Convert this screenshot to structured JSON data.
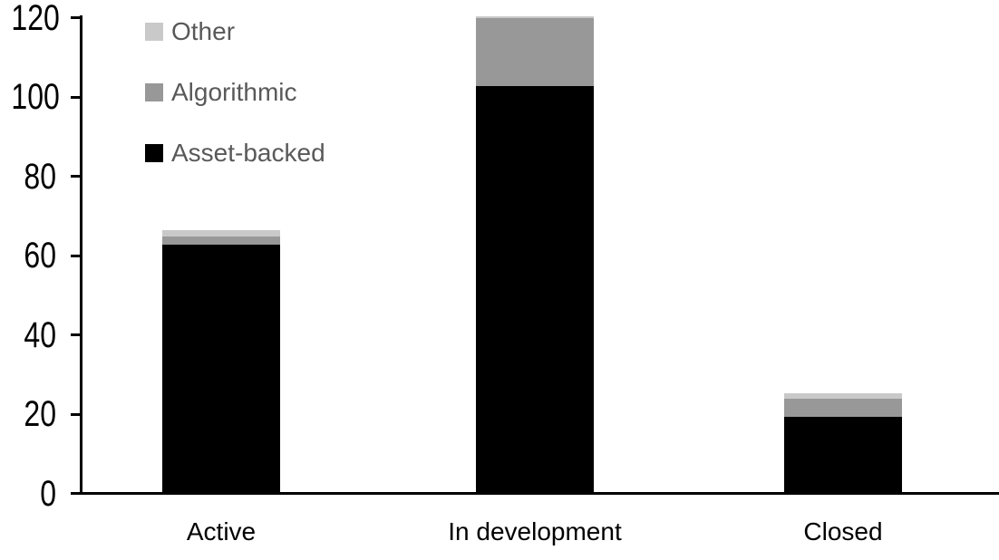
{
  "chart_data": {
    "type": "bar",
    "stacked": true,
    "title": "",
    "xlabel": "",
    "ylabel": "",
    "categories": [
      "Active",
      "In development",
      "Closed"
    ],
    "series": [
      {
        "name": "Asset-backed",
        "color": "#000000",
        "values": [
          62.5,
          102.5,
          19
        ]
      },
      {
        "name": "Algorithmic",
        "color": "#989898",
        "values": [
          2,
          17,
          4.5
        ]
      },
      {
        "name": "Other",
        "color": "#c9c9c9",
        "values": [
          1.5,
          0.5,
          1.5
        ]
      }
    ],
    "yticks": [
      0,
      20,
      40,
      60,
      80,
      100,
      120
    ],
    "ylim": [
      0,
      120
    ],
    "grid": false,
    "legend": {
      "position": "top-left",
      "order_top_to_bottom": [
        "Other",
        "Algorithmic",
        "Asset-backed"
      ]
    },
    "colors": {
      "axis": "#000000",
      "tick_label_text": "#000000",
      "category_label_text": "#000000",
      "legend_text": "#595959",
      "background": "#ffffff"
    }
  }
}
